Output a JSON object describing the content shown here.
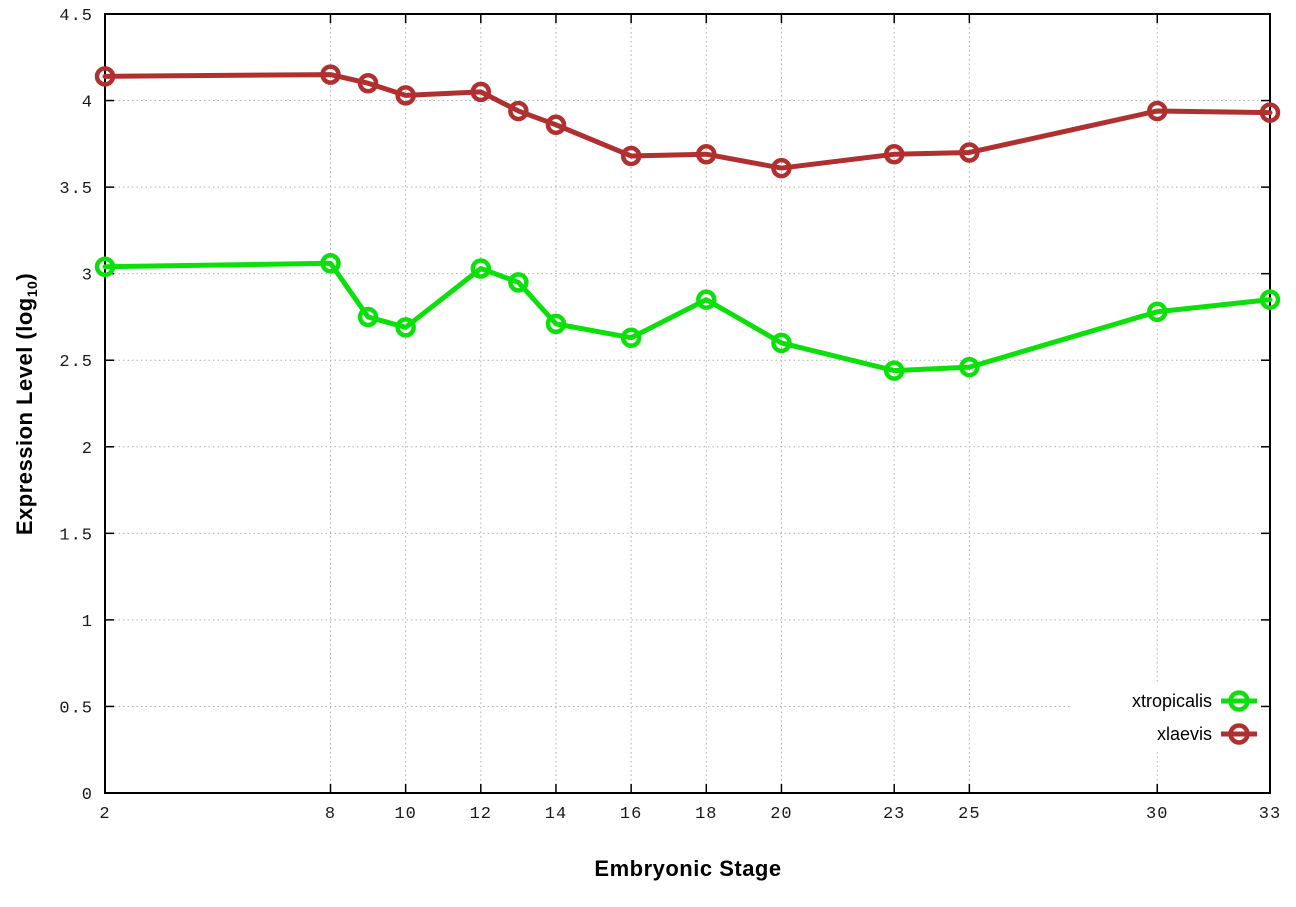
{
  "chart_data": {
    "type": "line",
    "title": "",
    "xlabel": "Embryonic Stage",
    "ylabel": "Expression Level (log10)",
    "ylabel_rich": {
      "prefix": "Expression Level (log",
      "sub": "10",
      "suffix": ")"
    },
    "x": [
      2,
      8,
      9,
      10,
      12,
      13,
      14,
      16,
      18,
      20,
      23,
      25,
      30,
      33
    ],
    "xticks": [
      2,
      8,
      10,
      12,
      14,
      16,
      18,
      20,
      23,
      25,
      30,
      33
    ],
    "yticks": [
      0,
      0.5,
      1,
      1.5,
      2,
      2.5,
      3,
      3.5,
      4,
      4.5
    ],
    "xlim": [
      2,
      33
    ],
    "ylim": [
      0,
      4.5
    ],
    "grid": true,
    "legend_position": "inside-bottom-right",
    "series": [
      {
        "name": "xtropicalis",
        "color": "#0be00b",
        "marker": "open-circle",
        "values": [
          3.04,
          3.06,
          2.75,
          2.69,
          3.03,
          2.95,
          2.71,
          2.63,
          2.85,
          2.6,
          2.44,
          2.46,
          2.78,
          2.85
        ]
      },
      {
        "name": "xlaevis",
        "color": "#b03030",
        "marker": "open-circle",
        "values": [
          4.14,
          4.15,
          4.1,
          4.03,
          4.05,
          3.94,
          3.86,
          3.68,
          3.69,
          3.61,
          3.69,
          3.7,
          3.94,
          3.93
        ]
      }
    ]
  },
  "colors": {
    "background": "#ffffff",
    "plot_border": "#000000",
    "grid": "#b0b0b0",
    "tick_label": "#1a1a1a",
    "axis_label": "#000000"
  }
}
